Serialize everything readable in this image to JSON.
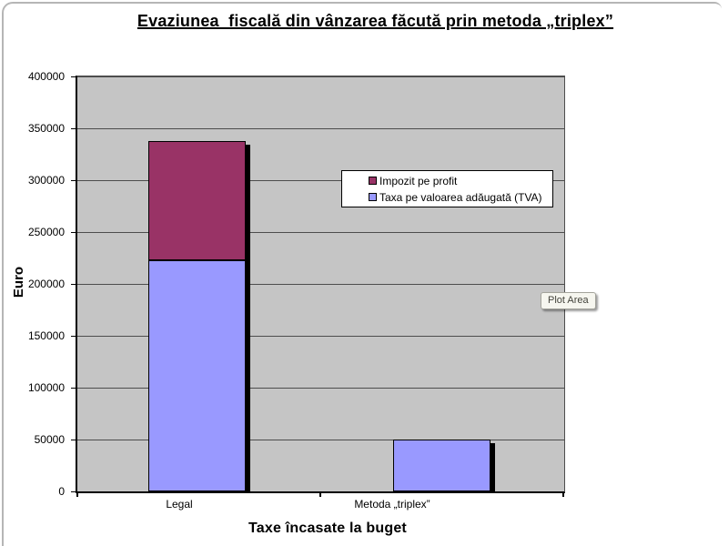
{
  "window": {
    "tooltip": "Plot Area"
  },
  "chart_data": {
    "type": "bar",
    "stacked": true,
    "title": "Evaziunea  fiscală din vânzarea făcută prin metoda „triplex”",
    "xlabel": "Taxe încasate la buget",
    "ylabel": "Euro",
    "categories": [
      "Legal",
      "Metoda „triplex”"
    ],
    "series": [
      {
        "name": "Taxa pe valoarea adăugată (TVA)",
        "color": "#9999FF",
        "values": [
          222500,
          50000
        ]
      },
      {
        "name": "Impozit pe profit",
        "color": "#993366",
        "values": [
          115000,
          0
        ]
      }
    ],
    "legend": [
      "Impozit pe profit",
      "Taxa pe valoarea adăugată (TVA)"
    ],
    "legend_position": "upper-right-inside-plot",
    "ylim": [
      0,
      400000
    ],
    "y_ticks": [
      0,
      50000,
      100000,
      150000,
      200000,
      250000,
      300000,
      350000,
      400000
    ],
    "grid": true,
    "plot_bg": "#c5c5c5"
  }
}
